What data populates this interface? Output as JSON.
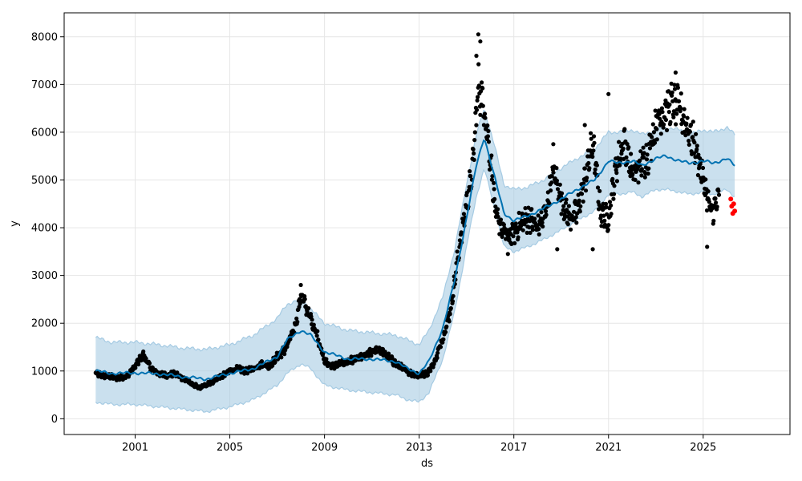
{
  "chart_data": {
    "type": "scatter",
    "title": "",
    "xlabel": "ds",
    "ylabel": "y",
    "x_ticks": [
      "2001",
      "2005",
      "2009",
      "2013",
      "2017",
      "2021",
      "2025"
    ],
    "y_ticks": [
      0,
      1000,
      2000,
      3000,
      4000,
      5000,
      6000,
      7000,
      8000
    ],
    "xlim": [
      "1998-01-01",
      "2028-09-01"
    ],
    "ylim": [
      -330,
      8500
    ],
    "grid": true,
    "colors": {
      "observed": "#000000",
      "forecast": "#0072b2",
      "interval": "#a6cbe3",
      "actual_future": "#ff0000",
      "grid": "#e6e6e6"
    },
    "series": [
      {
        "kind": "observed_points",
        "x": [
          "1999-05-01",
          "1999-09-01",
          "2000-01-01",
          "2000-05-01",
          "2000-09-01",
          "2001-01-01",
          "2001-05-01",
          "2001-09-01",
          "2002-01-01",
          "2002-05-01",
          "2002-09-01",
          "2003-01-01",
          "2003-05-01",
          "2003-09-01",
          "2004-01-01",
          "2004-05-01",
          "2004-09-01",
          "2005-01-01",
          "2005-05-01",
          "2005-09-01",
          "2006-01-01",
          "2006-05-01",
          "2006-09-01",
          "2007-01-01",
          "2007-05-01",
          "2007-09-01",
          "2007-11-01",
          "2008-01-01",
          "2008-05-01",
          "2008-09-01",
          "2009-01-01",
          "2009-05-01",
          "2009-09-01",
          "2010-01-01",
          "2010-05-01",
          "2010-09-01",
          "2011-01-01",
          "2011-05-01",
          "2011-09-01",
          "2012-01-01",
          "2012-05-01",
          "2012-09-01",
          "2013-01-01",
          "2013-05-01",
          "2013-09-01",
          "2014-01-01",
          "2014-05-01",
          "2014-09-01",
          "2015-01-01",
          "2015-04-01",
          "2015-07-01",
          "2015-10-01",
          "2016-01-01",
          "2016-04-01",
          "2016-07-01",
          "2016-10-01",
          "2017-01-01",
          "2017-05-01",
          "2017-09-01",
          "2018-01-01",
          "2018-05-01",
          "2018-09-01",
          "2019-01-01",
          "2019-05-01",
          "2019-09-01",
          "2020-01-01",
          "2020-05-01",
          "2020-09-01",
          "2021-01-01",
          "2021-05-01",
          "2021-09-01",
          "2022-01-01",
          "2022-05-01",
          "2022-09-01",
          "2023-01-01",
          "2023-05-01",
          "2023-09-01",
          "2024-01-01",
          "2024-05-01",
          "2024-09-01",
          "2025-01-01",
          "2025-05-01",
          "2025-09-01"
        ],
        "y": [
          950,
          900,
          880,
          850,
          900,
          1100,
          1350,
          1050,
          950,
          900,
          950,
          850,
          750,
          650,
          700,
          800,
          900,
          1000,
          1050,
          1000,
          1050,
          1150,
          1100,
          1300,
          1450,
          1800,
          2100,
          2600,
          2200,
          1800,
          1200,
          1100,
          1150,
          1200,
          1250,
          1300,
          1400,
          1450,
          1300,
          1150,
          1050,
          950,
          900,
          950,
          1200,
          1700,
          2300,
          3500,
          4500,
          5200,
          7000,
          6500,
          5500,
          4200,
          4000,
          3800,
          3900,
          4100,
          4200,
          4000,
          4300,
          5200,
          4600,
          4200,
          4300,
          5000,
          5800,
          4300,
          4200,
          5300,
          5800,
          5100,
          5300,
          5500,
          6200,
          6400,
          6600,
          6500,
          6100,
          5700,
          5000,
          4300,
          4600
        ]
      },
      {
        "kind": "forecast_line",
        "x": [
          "1999-05-01",
          "2000-01-01",
          "2001-01-01",
          "2002-01-01",
          "2003-01-01",
          "2004-01-01",
          "2005-01-01",
          "2006-01-01",
          "2007-01-01",
          "2007-06-01",
          "2008-01-01",
          "2008-06-01",
          "2009-01-01",
          "2010-01-01",
          "2011-01-01",
          "2012-01-01",
          "2012-07-01",
          "2013-01-01",
          "2013-06-01",
          "2014-01-01",
          "2014-07-01",
          "2015-01-01",
          "2015-06-01",
          "2015-10-01",
          "2016-03-01",
          "2016-08-01",
          "2017-01-01",
          "2017-08-01",
          "2018-04-01",
          "2019-01-01",
          "2019-09-01",
          "2020-06-01",
          "2021-01-01",
          "2021-06-01",
          "2022-01-01",
          "2022-06-01",
          "2023-01-01",
          "2023-06-01",
          "2024-01-01",
          "2024-06-01",
          "2025-01-01",
          "2025-06-01",
          "2026-01-01",
          "2026-05-01"
        ],
        "y": [
          1000,
          950,
          960,
          940,
          880,
          830,
          950,
          1050,
          1300,
          1650,
          1850,
          1750,
          1400,
          1250,
          1250,
          1200,
          1050,
          950,
          1200,
          1900,
          2900,
          4200,
          5300,
          5900,
          5100,
          4300,
          4150,
          4250,
          4400,
          4600,
          4800,
          5000,
          5400,
          5350,
          5400,
          5300,
          5450,
          5500,
          5400,
          5350,
          5400,
          5350,
          5450,
          5300
        ]
      },
      {
        "kind": "interval_upper",
        "x": [
          "1999-05-01",
          "2000-01-01",
          "2001-01-01",
          "2002-01-01",
          "2003-01-01",
          "2004-01-01",
          "2005-01-01",
          "2006-01-01",
          "2007-01-01",
          "2007-06-01",
          "2008-01-01",
          "2008-06-01",
          "2009-01-01",
          "2010-01-01",
          "2011-01-01",
          "2012-01-01",
          "2012-07-01",
          "2013-01-01",
          "2013-06-01",
          "2014-01-01",
          "2014-07-01",
          "2015-01-01",
          "2015-06-01",
          "2015-10-01",
          "2016-03-01",
          "2016-08-01",
          "2017-01-01",
          "2017-08-01",
          "2018-04-01",
          "2019-01-01",
          "2019-09-01",
          "2020-06-01",
          "2021-01-01",
          "2021-06-01",
          "2022-01-01",
          "2022-06-01",
          "2023-01-01",
          "2023-06-01",
          "2024-01-01",
          "2024-06-01",
          "2025-01-01",
          "2025-06-01",
          "2026-01-01",
          "2026-05-01"
        ],
        "y": [
          1700,
          1600,
          1600,
          1550,
          1480,
          1450,
          1550,
          1750,
          2100,
          2400,
          2500,
          2300,
          2000,
          1850,
          1800,
          1750,
          1650,
          1550,
          1850,
          2550,
          3550,
          4900,
          5950,
          6500,
          5750,
          4900,
          4800,
          4850,
          5000,
          5250,
          5450,
          5650,
          6000,
          6000,
          6050,
          5950,
          6050,
          6100,
          6050,
          5950,
          6050,
          6000,
          6100,
          5950
        ]
      },
      {
        "kind": "interval_lower",
        "x": [
          "1999-05-01",
          "2000-01-01",
          "2001-01-01",
          "2002-01-01",
          "2003-01-01",
          "2004-01-01",
          "2005-01-01",
          "2006-01-01",
          "2007-01-01",
          "2007-06-01",
          "2008-01-01",
          "2008-06-01",
          "2009-01-01",
          "2010-01-01",
          "2011-01-01",
          "2012-01-01",
          "2012-07-01",
          "2013-01-01",
          "2013-06-01",
          "2014-01-01",
          "2014-07-01",
          "2015-01-01",
          "2015-06-01",
          "2015-10-01",
          "2016-03-01",
          "2016-08-01",
          "2017-01-01",
          "2017-08-01",
          "2018-04-01",
          "2019-01-01",
          "2019-09-01",
          "2020-06-01",
          "2021-01-01",
          "2021-06-01",
          "2022-01-01",
          "2022-06-01",
          "2023-01-01",
          "2023-06-01",
          "2024-01-01",
          "2024-06-01",
          "2025-01-01",
          "2025-06-01",
          "2026-01-01",
          "2026-05-01"
        ],
        "y": [
          350,
          300,
          300,
          250,
          200,
          150,
          250,
          400,
          700,
          950,
          1150,
          1050,
          700,
          600,
          550,
          500,
          400,
          350,
          550,
          1250,
          2250,
          3600,
          4650,
          5250,
          4450,
          3600,
          3500,
          3600,
          3750,
          3950,
          4150,
          4350,
          4700,
          4700,
          4750,
          4650,
          4800,
          4800,
          4750,
          4700,
          4750,
          4700,
          4800,
          4650
        ]
      },
      {
        "kind": "actual_future_points",
        "x": [
          "2026-03-01",
          "2026-03-15",
          "2026-04-01",
          "2026-04-15",
          "2026-05-01"
        ],
        "y": [
          4600,
          4450,
          4300,
          4500,
          4350
        ]
      }
    ]
  }
}
